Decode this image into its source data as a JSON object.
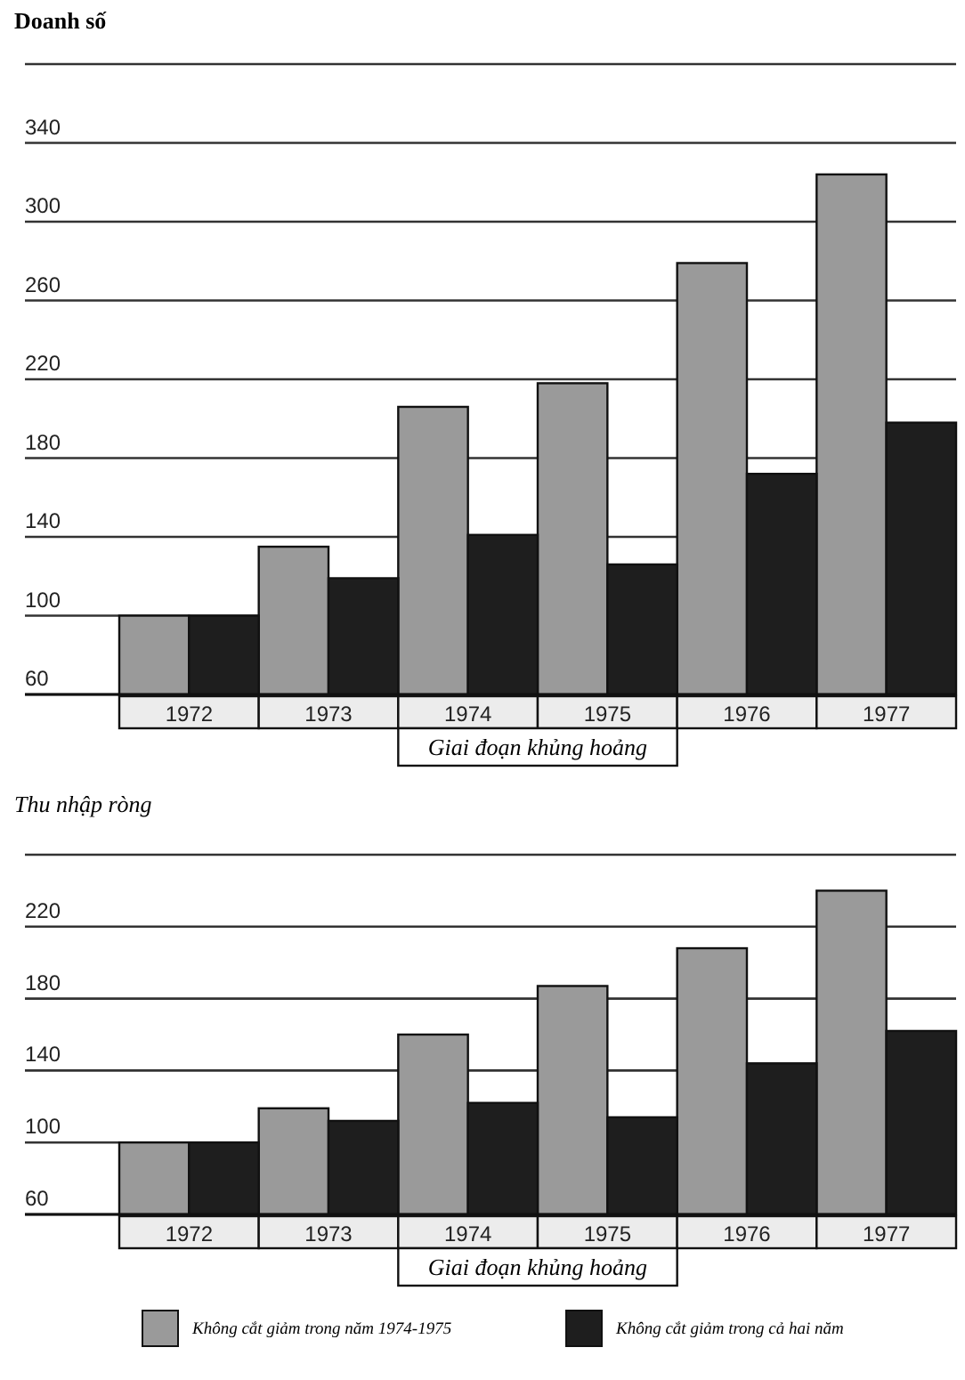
{
  "chart_data": [
    {
      "type": "bar",
      "title": "Doanh số",
      "categories": [
        "1972",
        "1973",
        "1974",
        "1975",
        "1976",
        "1977"
      ],
      "series": [
        {
          "color": "#9a9a9a",
          "values": [
            100,
            135,
            206,
            218,
            279,
            324
          ]
        },
        {
          "color": "#1e1e1e",
          "values": [
            100,
            119,
            141,
            126,
            172,
            198
          ]
        }
      ],
      "ylim": [
        60,
        380
      ],
      "yticks": [
        60,
        100,
        140,
        180,
        220,
        260,
        300,
        340,
        {
          "value": 380,
          "label": null
        }
      ],
      "grid": "y",
      "annotations": [
        "Giai đoạn khủng hoảng"
      ]
    },
    {
      "type": "bar",
      "title": "Thu nhập ròng",
      "categories": [
        "1972",
        "1973",
        "1974",
        "1975",
        "1976",
        "1977"
      ],
      "series": [
        {
          "name": "Không cắt giảm trong năm 1974-1975",
          "color": "#9a9a9a",
          "values": [
            100,
            119,
            160,
            187,
            208,
            240
          ]
        },
        {
          "name": "Không cắt giảm trong cả hai năm",
          "color": "#1e1e1e",
          "values": [
            100,
            112,
            122,
            114,
            144,
            162
          ]
        }
      ],
      "ylim": [
        60,
        260
      ],
      "yticks": [
        60,
        100,
        140,
        180,
        220,
        {
          "value": 260,
          "label": null
        }
      ],
      "grid": "y",
      "legend": "bottom",
      "annotations": [
        "Giai đoạn khủng hoảng"
      ]
    }
  ]
}
